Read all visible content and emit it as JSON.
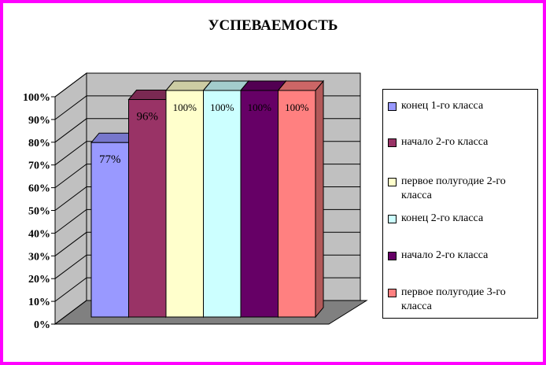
{
  "chart_data": {
    "type": "bar",
    "title": "УСПЕВАЕМОСТЬ",
    "xlabel": "",
    "ylabel": "",
    "ylim": [
      0,
      100
    ],
    "yticks": [
      "0%",
      "10%",
      "20%",
      "30%",
      "40%",
      "50%",
      "60%",
      "70%",
      "80%",
      "90%",
      "100%"
    ],
    "grid": true,
    "legend_position": "right",
    "series": [
      {
        "name": "конец 1-го класса",
        "value": 77,
        "label": "77%",
        "color": "#9999ff",
        "top_color": "#7777cc",
        "side_color": "#6666aa"
      },
      {
        "name": "начало 2-го класса",
        "value": 96,
        "label": "96%",
        "color": "#993366",
        "top_color": "#7a2952",
        "side_color": "#6b2447"
      },
      {
        "name": "первое полугодие 2-го класса",
        "value": 100,
        "label": "100%",
        "color": "#ffffcc",
        "top_color": "#cccca3",
        "side_color": "#b3b38f"
      },
      {
        "name": "конец 2-го класса",
        "value": 100,
        "label": "100%",
        "color": "#ccffff",
        "top_color": "#a3cccc",
        "side_color": "#8fb3b3"
      },
      {
        "name": "начало 2-го класса",
        "value": 100,
        "label": "100%",
        "color": "#660066",
        "top_color": "#520052",
        "side_color": "#470047"
      },
      {
        "name": "первое полугодие 3-го класса",
        "value": 100,
        "label": "100%",
        "color": "#ff8080",
        "top_color": "#cc6666",
        "side_color": "#b35959"
      }
    ]
  }
}
